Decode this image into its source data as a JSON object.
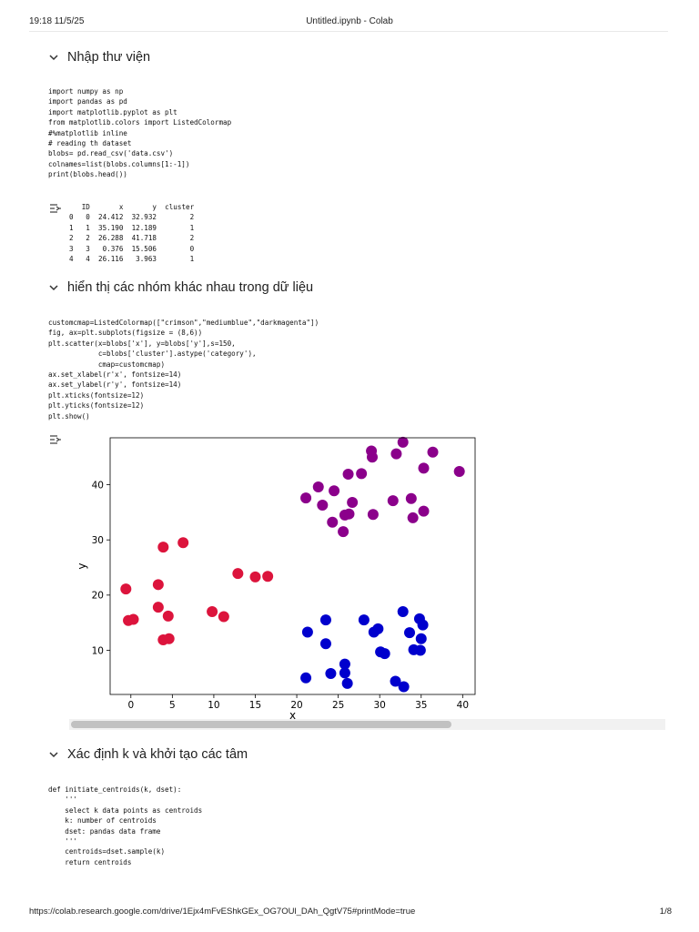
{
  "header": {
    "datetime": "19:18 11/5/25",
    "title": "Untitled.ipynb - Colab"
  },
  "footer": {
    "url": "https://colab.research.google.com/drive/1Ejx4mFvEShkGEx_OG7OUl_DAh_QgtV75#printMode=true",
    "page": "1/8"
  },
  "sections": [
    {
      "title": "Nhập thư viện"
    },
    {
      "title": "hiển thị các nhóm khác nhau trong dữ liệu"
    },
    {
      "title": "Xác định k và khởi tạo các tâm"
    }
  ],
  "cells": {
    "import_code": "import numpy as np\nimport pandas as pd\nimport matplotlib.pyplot as plt\nfrom matplotlib.colors import ListedColormap\n#%matplotlib inline\n# reading th dataset\nblobs= pd.read_csv('data.csv')\ncolnames=list(blobs.columns[1:-1])\nprint(blobs.head())",
    "head_output": "   ID       x       y  cluster\n0   0  24.412  32.932        2\n1   1  35.190  12.189        1\n2   2  26.288  41.718        2\n3   3   0.376  15.506        0\n4   4  26.116   3.963        1",
    "plot_code": "customcmap=ListedColormap([\"crimson\",\"mediumblue\",\"darkmagenta\"])\nfig, ax=plt.subplots(figsize = (8,6))\nplt.scatter(x=blobs['x'], y=blobs['y'],s=150,\n            c=blobs['cluster'].astype('category'),\n            cmap=customcmap)\nax.set_xlabel(r'x', fontsize=14)\nax.set_ylabel(r'y', fontsize=14)\nplt.xticks(fontsize=12)\nplt.yticks(fontsize=12)\nplt.show()",
    "centroid_code": "def initiate_centroids(k, dset):\n    '''\n    select k data points as centroids\n    k: number of centroids\n    dset: pandas data frame\n    '''\n    centroids=dset.sample(k)\n    return centroids"
  },
  "chart_data": {
    "type": "scatter",
    "xlabel": "x",
    "ylabel": "y",
    "xlim": [
      -2.5,
      41.5
    ],
    "ylim": [
      2,
      48.5
    ],
    "xticks": [
      0,
      5,
      10,
      15,
      20,
      25,
      30,
      35,
      40
    ],
    "yticks": [
      10,
      20,
      30,
      40
    ],
    "grid": false,
    "legend": "none",
    "series": [
      {
        "color": "#dc143c",
        "points": [
          [
            -0.6,
            21.1
          ],
          [
            -0.3,
            15.4
          ],
          [
            0.3,
            15.6
          ],
          [
            3.3,
            21.9
          ],
          [
            3.3,
            17.8
          ],
          [
            3.9,
            28.7
          ],
          [
            3.9,
            11.9
          ],
          [
            4.5,
            16.2
          ],
          [
            4.6,
            12.1
          ],
          [
            6.3,
            29.5
          ],
          [
            9.8,
            17.0
          ],
          [
            11.2,
            16.1
          ],
          [
            12.9,
            23.9
          ],
          [
            15.0,
            23.3
          ],
          [
            16.5,
            23.4
          ]
        ]
      },
      {
        "color": "#0000cd",
        "points": [
          [
            21.1,
            5.0
          ],
          [
            21.3,
            13.3
          ],
          [
            23.5,
            15.5
          ],
          [
            23.5,
            11.2
          ],
          [
            24.1,
            5.8
          ],
          [
            25.8,
            7.5
          ],
          [
            25.8,
            5.9
          ],
          [
            26.1,
            4.0
          ],
          [
            28.1,
            15.5
          ],
          [
            29.3,
            13.3
          ],
          [
            29.8,
            13.9
          ],
          [
            30.1,
            9.7
          ],
          [
            30.6,
            9.4
          ],
          [
            31.9,
            4.4
          ],
          [
            32.8,
            17.0
          ],
          [
            32.9,
            3.4
          ],
          [
            33.6,
            13.2
          ],
          [
            34.1,
            10.1
          ],
          [
            34.8,
            15.7
          ],
          [
            34.9,
            10.0
          ],
          [
            35.2,
            14.6
          ],
          [
            35.0,
            12.1
          ]
        ]
      },
      {
        "color": "#8b008b",
        "points": [
          [
            21.1,
            37.6
          ],
          [
            22.6,
            39.6
          ],
          [
            23.1,
            36.3
          ],
          [
            24.3,
            33.2
          ],
          [
            24.5,
            38.9
          ],
          [
            25.6,
            31.5
          ],
          [
            25.8,
            34.5
          ],
          [
            26.2,
            41.9
          ],
          [
            26.3,
            34.7
          ],
          [
            26.7,
            36.8
          ],
          [
            27.8,
            42.0
          ],
          [
            29.0,
            46.1
          ],
          [
            29.1,
            45.0
          ],
          [
            29.2,
            34.6
          ],
          [
            31.6,
            37.1
          ],
          [
            32.0,
            45.6
          ],
          [
            32.8,
            47.7
          ],
          [
            33.8,
            37.5
          ],
          [
            34.0,
            34.0
          ],
          [
            35.3,
            43.0
          ],
          [
            35.3,
            35.2
          ],
          [
            36.4,
            45.9
          ],
          [
            39.6,
            42.4
          ]
        ]
      }
    ]
  }
}
